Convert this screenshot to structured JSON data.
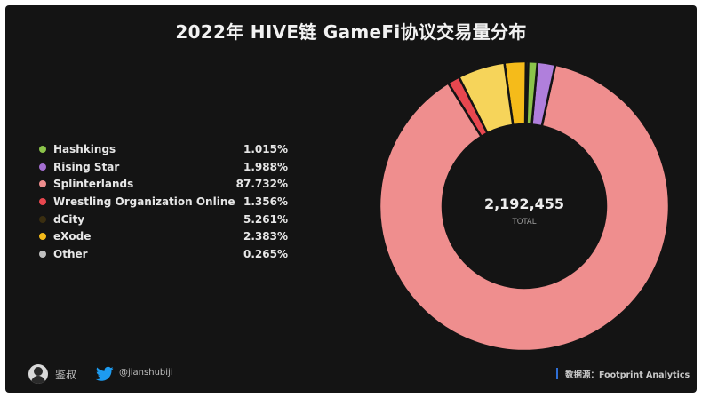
{
  "title": "2022年 HIVE链 GameFi协议交易量分布",
  "chart_data": {
    "type": "pie",
    "title": "2022年 HIVE链 GameFi协议交易量分布",
    "series": [
      {
        "name": "Hashkings",
        "value": 1.015,
        "label": "1.015%",
        "color": "#8bc34a"
      },
      {
        "name": "Rising Star",
        "value": 1.988,
        "label": "1.988%",
        "color": "#b07fdc"
      },
      {
        "name": "Splinterlands",
        "value": 87.732,
        "label": "87.732%",
        "color": "#ef8e8e"
      },
      {
        "name": "Wrestling Organization Online",
        "value": 1.356,
        "label": "1.356%",
        "color": "#e8474f"
      },
      {
        "name": "dCity",
        "value": 5.261,
        "label": "5.261%",
        "color": "#f6d45a"
      },
      {
        "name": "eXode",
        "value": 2.383,
        "label": "2.383%",
        "color": "#f5bb1a"
      },
      {
        "name": "Other",
        "value": 0.265,
        "label": "0.265%",
        "color": "#bfbfbf"
      }
    ],
    "legend_dot_colors": [
      "#8bc34a",
      "#a46fd1",
      "#ef8e8e",
      "#e8474f",
      "#3a2e10",
      "#f5bb1a",
      "#bfbfbf"
    ],
    "center_value": "2,192,455",
    "center_label": "TOTAL",
    "legend_position": "left"
  },
  "footer": {
    "author": "鉴叔",
    "twitter_handle": "@jianshubiji",
    "source": "数据源：Footprint Analytics"
  }
}
